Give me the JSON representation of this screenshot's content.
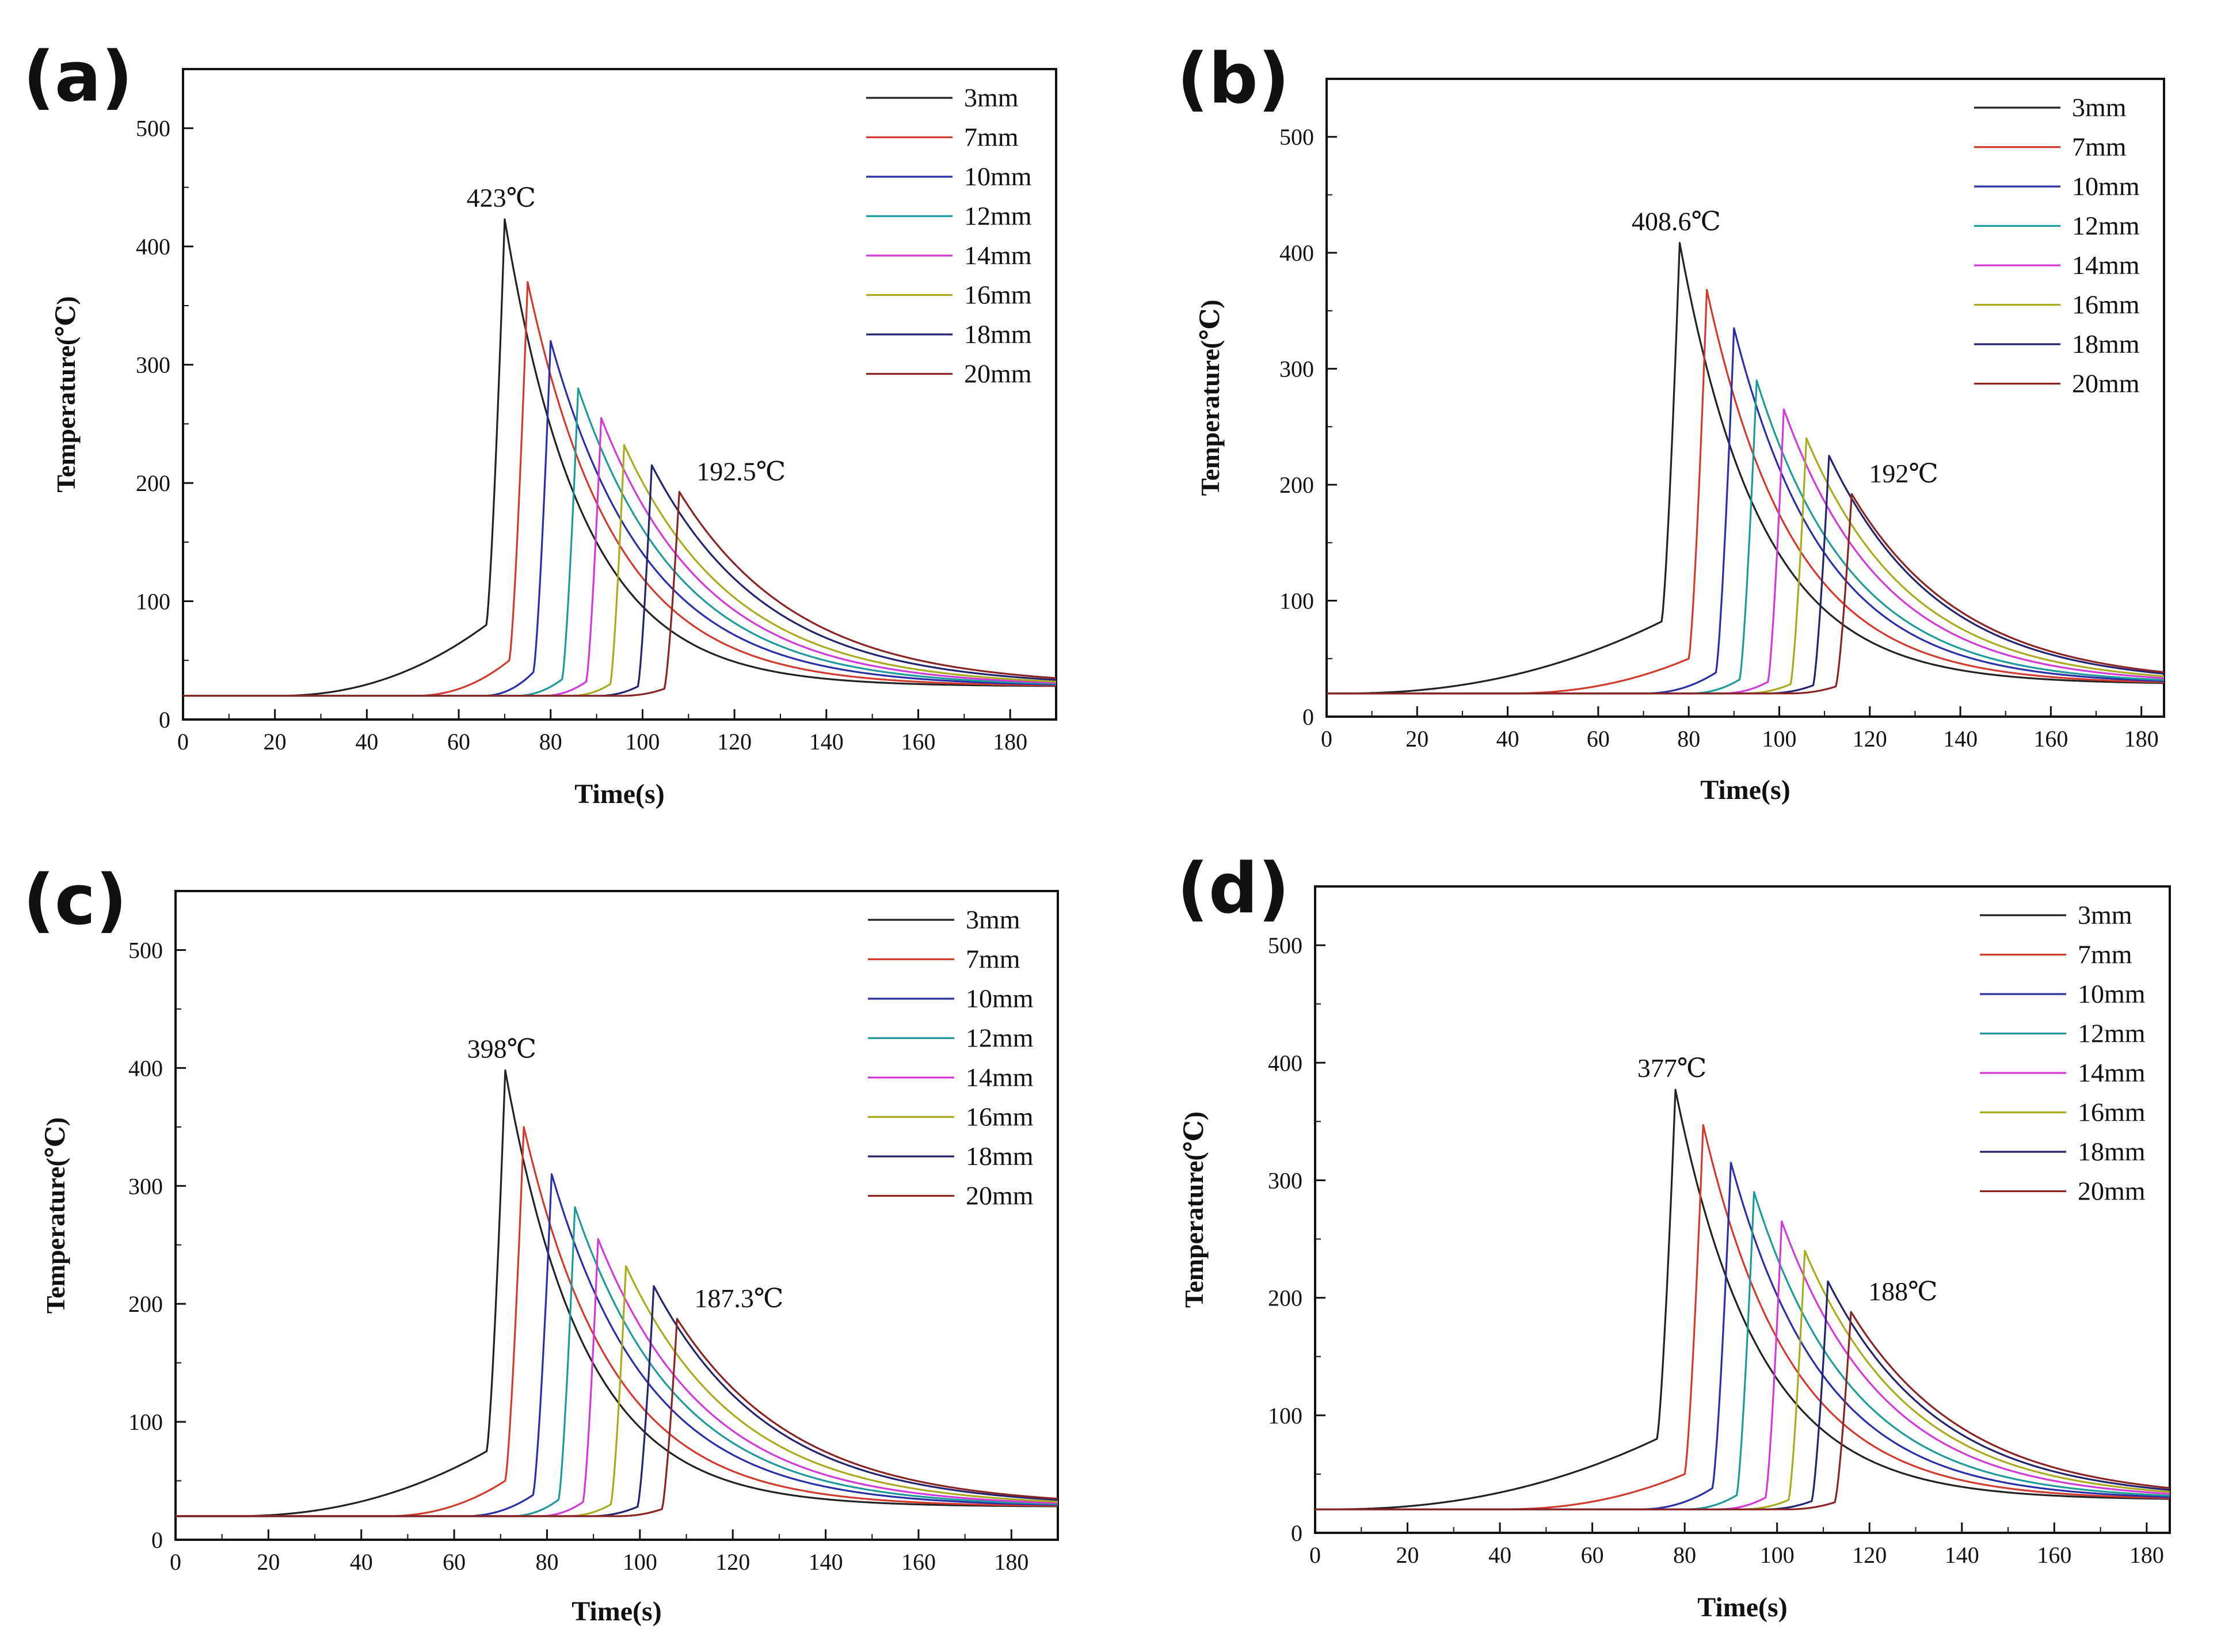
{
  "figure": {
    "description_colors": {
      "3mm": "#222222",
      "7mm": "#d23a2e",
      "10mm": "#2a2fa8",
      "12mm": "#1f9a9a",
      "14mm": "#d23ad8",
      "16mm": "#a9ab1e",
      "18mm": "#23236e",
      "20mm": "#8a2424"
    }
  },
  "chart_data": [
    {
      "panel": "(a)",
      "type": "line",
      "xlabel": "Time(s)",
      "ylabel": "Temperature(℃)",
      "xlim": [
        0,
        190
      ],
      "ylim": [
        0,
        550
      ],
      "xticks": [
        0,
        20,
        40,
        60,
        80,
        100,
        120,
        140,
        160,
        180
      ],
      "yticks": [
        0,
        100,
        200,
        300,
        400,
        500
      ],
      "legend_position": "top-right",
      "legend": [
        "3mm",
        "7mm",
        "10mm",
        "12mm",
        "14mm",
        "16mm",
        "18mm",
        "20mm"
      ],
      "annotations": [
        {
          "text": "423℃",
          "x": 70,
          "y": 423
        },
        {
          "text": "192.5℃",
          "x": 108,
          "y": 192.5
        }
      ],
      "series": [
        {
          "name": "3mm",
          "color": "#222222",
          "base": 20,
          "end": 28,
          "t_start": 20,
          "t_peak": 70,
          "peak": 423,
          "pre_rise": 60,
          "tau": 17
        },
        {
          "name": "7mm",
          "color": "#d23a2e",
          "base": 20,
          "end": 28,
          "t_start": 50,
          "t_peak": 75,
          "peak": 370,
          "pre_rise": 30,
          "tau": 19
        },
        {
          "name": "10mm",
          "color": "#2a2fa8",
          "base": 20,
          "end": 28,
          "t_start": 65,
          "t_peak": 80,
          "peak": 320,
          "pre_rise": 20,
          "tau": 21
        },
        {
          "name": "12mm",
          "color": "#1f9a9a",
          "base": 20,
          "end": 28,
          "t_start": 72,
          "t_peak": 86,
          "peak": 280,
          "pre_rise": 14,
          "tau": 22
        },
        {
          "name": "14mm",
          "color": "#d23ad8",
          "base": 20,
          "end": 28,
          "t_start": 78,
          "t_peak": 91,
          "peak": 255,
          "pre_rise": 12,
          "tau": 23
        },
        {
          "name": "16mm",
          "color": "#a9ab1e",
          "base": 20,
          "end": 28,
          "t_start": 84,
          "t_peak": 96,
          "peak": 232,
          "pre_rise": 10,
          "tau": 24
        },
        {
          "name": "18mm",
          "color": "#23236e",
          "base": 20,
          "end": 28,
          "t_start": 90,
          "t_peak": 102,
          "peak": 215,
          "pre_rise": 8,
          "tau": 25
        },
        {
          "name": "20mm",
          "color": "#8a2424",
          "base": 20,
          "end": 28,
          "t_start": 95,
          "t_peak": 108,
          "peak": 192.5,
          "pre_rise": 6,
          "tau": 26
        }
      ]
    },
    {
      "panel": "(b)",
      "type": "line",
      "xlabel": "Time(s)",
      "ylabel": "Temperature(℃)",
      "xlim": [
        0,
        185
      ],
      "ylim": [
        0,
        550
      ],
      "xticks": [
        0,
        20,
        40,
        60,
        80,
        100,
        120,
        140,
        160,
        180
      ],
      "yticks": [
        0,
        100,
        200,
        300,
        400,
        500
      ],
      "legend_position": "top-right",
      "legend": [
        "3mm",
        "7mm",
        "10mm",
        "12mm",
        "14mm",
        "16mm",
        "18mm",
        "20mm"
      ],
      "annotations": [
        {
          "text": "408.6℃",
          "x": 78,
          "y": 408.6
        },
        {
          "text": "192℃",
          "x": 116,
          "y": 192
        }
      ],
      "series": [
        {
          "name": "3mm",
          "color": "#222222",
          "base": 20,
          "end": 28,
          "t_start": 3,
          "t_peak": 78,
          "peak": 408.6,
          "pre_rise": 62,
          "tau": 18
        },
        {
          "name": "7mm",
          "color": "#d23a2e",
          "base": 20,
          "end": 28,
          "t_start": 40,
          "t_peak": 84,
          "peak": 368,
          "pre_rise": 30,
          "tau": 19
        },
        {
          "name": "10mm",
          "color": "#2a2fa8",
          "base": 20,
          "end": 28,
          "t_start": 70,
          "t_peak": 90,
          "peak": 335,
          "pre_rise": 18,
          "tau": 20
        },
        {
          "name": "12mm",
          "color": "#1f9a9a",
          "base": 20,
          "end": 28,
          "t_start": 80,
          "t_peak": 95,
          "peak": 290,
          "pre_rise": 12,
          "tau": 21
        },
        {
          "name": "14mm",
          "color": "#d23ad8",
          "base": 20,
          "end": 28,
          "t_start": 87,
          "t_peak": 101,
          "peak": 265,
          "pre_rise": 10,
          "tau": 22
        },
        {
          "name": "16mm",
          "color": "#a9ab1e",
          "base": 20,
          "end": 28,
          "t_start": 92,
          "t_peak": 106,
          "peak": 240,
          "pre_rise": 8,
          "tau": 23
        },
        {
          "name": "18mm",
          "color": "#23236e",
          "base": 20,
          "end": 28,
          "t_start": 97,
          "t_peak": 111,
          "peak": 225,
          "pre_rise": 7,
          "tau": 24
        },
        {
          "name": "20mm",
          "color": "#8a2424",
          "base": 20,
          "end": 28,
          "t_start": 102,
          "t_peak": 116,
          "peak": 192,
          "pre_rise": 6,
          "tau": 25
        }
      ]
    },
    {
      "panel": "(c)",
      "type": "line",
      "xlabel": "Time(s)",
      "ylabel": "Temperature(℃)",
      "xlim": [
        0,
        190
      ],
      "ylim": [
        0,
        550
      ],
      "xticks": [
        0,
        20,
        40,
        60,
        80,
        100,
        120,
        140,
        160,
        180
      ],
      "yticks": [
        0,
        100,
        200,
        300,
        400,
        500
      ],
      "legend_position": "top-right",
      "legend": [
        "3mm",
        "7mm",
        "10mm",
        "12mm",
        "14mm",
        "16mm",
        "18mm",
        "20mm"
      ],
      "annotations": [
        {
          "text": "398℃",
          "x": 71,
          "y": 398
        },
        {
          "text": "187.3℃",
          "x": 108,
          "y": 187.3
        }
      ],
      "series": [
        {
          "name": "3mm",
          "color": "#222222",
          "base": 20,
          "end": 28,
          "t_start": 12,
          "t_peak": 71,
          "peak": 398,
          "pre_rise": 55,
          "tau": 17
        },
        {
          "name": "7mm",
          "color": "#d23a2e",
          "base": 20,
          "end": 28,
          "t_start": 45,
          "t_peak": 75,
          "peak": 350,
          "pre_rise": 30,
          "tau": 19
        },
        {
          "name": "10mm",
          "color": "#2a2fa8",
          "base": 20,
          "end": 28,
          "t_start": 62,
          "t_peak": 81,
          "peak": 310,
          "pre_rise": 18,
          "tau": 21
        },
        {
          "name": "12mm",
          "color": "#1f9a9a",
          "base": 20,
          "end": 28,
          "t_start": 72,
          "t_peak": 86,
          "peak": 282,
          "pre_rise": 14,
          "tau": 22
        },
        {
          "name": "14mm",
          "color": "#d23ad8",
          "base": 20,
          "end": 28,
          "t_start": 78,
          "t_peak": 91,
          "peak": 255,
          "pre_rise": 12,
          "tau": 23
        },
        {
          "name": "16mm",
          "color": "#a9ab1e",
          "base": 20,
          "end": 28,
          "t_start": 84,
          "t_peak": 97,
          "peak": 232,
          "pre_rise": 10,
          "tau": 24
        },
        {
          "name": "18mm",
          "color": "#23236e",
          "base": 20,
          "end": 28,
          "t_start": 89,
          "t_peak": 103,
          "peak": 215,
          "pre_rise": 8,
          "tau": 25
        },
        {
          "name": "20mm",
          "color": "#8a2424",
          "base": 20,
          "end": 28,
          "t_start": 95,
          "t_peak": 108,
          "peak": 187.3,
          "pre_rise": 6,
          "tau": 26
        }
      ]
    },
    {
      "panel": "(d)",
      "type": "line",
      "xlabel": "Time(s)",
      "ylabel": "Temperature(℃)",
      "xlim": [
        0,
        185
      ],
      "ylim": [
        0,
        550
      ],
      "xticks": [
        0,
        20,
        40,
        60,
        80,
        100,
        120,
        140,
        160,
        180
      ],
      "yticks": [
        0,
        100,
        200,
        300,
        400,
        500
      ],
      "legend_position": "top-right",
      "legend": [
        "3mm",
        "7mm",
        "10mm",
        "12mm",
        "14mm",
        "16mm",
        "18mm",
        "20mm"
      ],
      "annotations": [
        {
          "text": "377℃",
          "x": 78,
          "y": 377
        },
        {
          "text": "188℃",
          "x": 116,
          "y": 188
        }
      ],
      "series": [
        {
          "name": "3mm",
          "color": "#222222",
          "base": 20,
          "end": 28,
          "t_start": 3,
          "t_peak": 78,
          "peak": 377,
          "pre_rise": 60,
          "tau": 18
        },
        {
          "name": "7mm",
          "color": "#d23a2e",
          "base": 20,
          "end": 28,
          "t_start": 40,
          "t_peak": 84,
          "peak": 347,
          "pre_rise": 30,
          "tau": 19
        },
        {
          "name": "10mm",
          "color": "#2a2fa8",
          "base": 20,
          "end": 28,
          "t_start": 70,
          "t_peak": 90,
          "peak": 315,
          "pre_rise": 18,
          "tau": 20
        },
        {
          "name": "12mm",
          "color": "#1f9a9a",
          "base": 20,
          "end": 28,
          "t_start": 80,
          "t_peak": 95,
          "peak": 290,
          "pre_rise": 12,
          "tau": 21
        },
        {
          "name": "14mm",
          "color": "#d23ad8",
          "base": 20,
          "end": 28,
          "t_start": 87,
          "t_peak": 101,
          "peak": 265,
          "pre_rise": 10,
          "tau": 22
        },
        {
          "name": "16mm",
          "color": "#a9ab1e",
          "base": 20,
          "end": 28,
          "t_start": 92,
          "t_peak": 106,
          "peak": 240,
          "pre_rise": 8,
          "tau": 23
        },
        {
          "name": "18mm",
          "color": "#23236e",
          "base": 20,
          "end": 28,
          "t_start": 97,
          "t_peak": 111,
          "peak": 214,
          "pre_rise": 7,
          "tau": 24
        },
        {
          "name": "20mm",
          "color": "#8a2424",
          "base": 20,
          "end": 28,
          "t_start": 102,
          "t_peak": 116,
          "peak": 188,
          "pre_rise": 6,
          "tau": 25
        }
      ]
    }
  ]
}
